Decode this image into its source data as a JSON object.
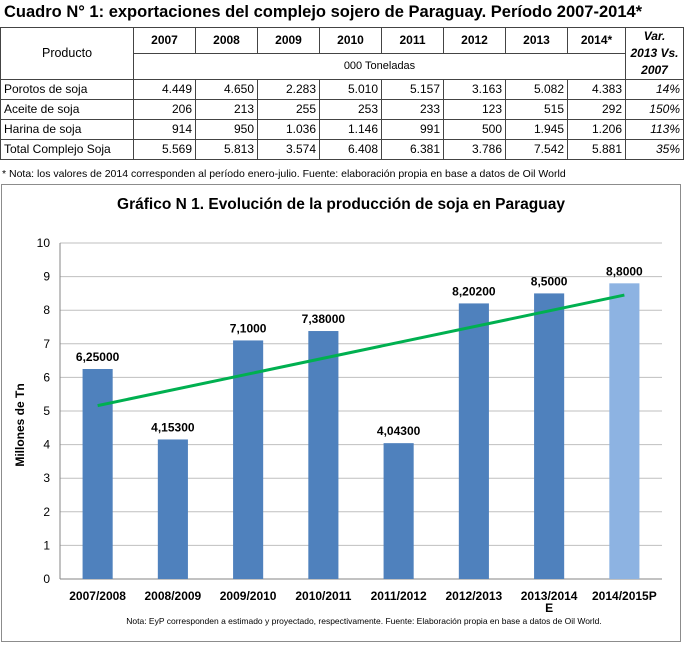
{
  "title": "Cuadro N° 1: exportaciones del complejo sojero de Paraguay. Período 2007-2014*",
  "table": {
    "product_header": "Producto",
    "year_headers": [
      "2007",
      "2008",
      "2009",
      "2010",
      "2011",
      "2012",
      "2013",
      "2014*"
    ],
    "var_header_line1": "Var.",
    "var_header_line2": "2013 Vs.",
    "var_header_line3": "2007",
    "units": "000 Toneladas",
    "rows": [
      {
        "label": "Porotos de soja",
        "values": [
          "4.449",
          "4.650",
          "2.283",
          "5.010",
          "5.157",
          "3.163",
          "5.082",
          "4.383"
        ],
        "var": "14%"
      },
      {
        "label": "Aceite de soja",
        "values": [
          "206",
          "213",
          "255",
          "253",
          "233",
          "123",
          "515",
          "292"
        ],
        "var": "150%"
      },
      {
        "label": "Harina de soja",
        "values": [
          "914",
          "950",
          "1.036",
          "1.146",
          "991",
          "500",
          "1.945",
          "1.206"
        ],
        "var": "113%"
      },
      {
        "label": "Total Complejo Soja",
        "values": [
          "5.569",
          "5.813",
          "3.574",
          "6.408",
          "6.381",
          "3.786",
          "7.542",
          "5.881"
        ],
        "var": "35%"
      }
    ]
  },
  "table_note": "* Nota: los valores de 2014 corresponden al período enero-julio. Fuente: elaboración propia en base a datos de Oil World",
  "chart_note": "Nota: EyP corresponden a estimado y proyectado, respectivamente. Fuente: Elaboración propia en base a datos de Oil World.",
  "colors": {
    "bar": "#4f81bd",
    "bar_projected": "#8db3e2",
    "trend": "#00b050",
    "grid": "#bfbfbf"
  },
  "chart_data": {
    "type": "bar",
    "title": "Gráfico N  1. Evolución de la producción de soja en Paraguay",
    "ylabel": "Millones de Tn",
    "xlabel": "",
    "categories": [
      "2007/2008",
      "2008/2009",
      "2009/2010",
      "2010/2011",
      "2011/2012",
      "2012/2013",
      "2013/2014",
      "2014/2015P"
    ],
    "category_suffix": "E",
    "values": [
      6.25,
      4.153,
      7.1,
      7.38,
      4.043,
      8.202,
      8.5,
      8.8
    ],
    "data_labels": [
      "6,25000",
      "4,15300",
      "7,1000",
      "7,38000",
      "4,04300",
      "8,20200",
      "8,5000",
      "8,8000"
    ],
    "projected": [
      false,
      false,
      false,
      false,
      false,
      false,
      false,
      true
    ],
    "yticks": [
      "0",
      "1",
      "2",
      "3",
      "4",
      "5",
      "6",
      "7",
      "8",
      "9",
      "10"
    ],
    "ylim": [
      0,
      10
    ],
    "grid": true,
    "legend": "none",
    "trendline": {
      "type": "linear",
      "start": 5.16,
      "end": 8.45
    }
  }
}
